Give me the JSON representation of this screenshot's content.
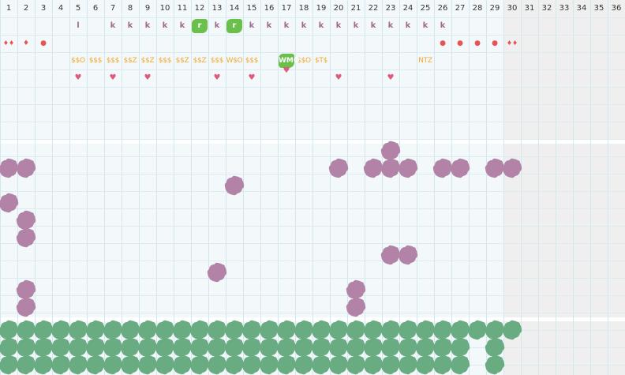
{
  "days": [
    "1",
    "2",
    "3",
    "4",
    "5",
    "6",
    "7",
    "8",
    "9",
    "10",
    "11",
    "12",
    "13",
    "14",
    "15",
    "16",
    "17",
    "18",
    "19",
    "20",
    "21",
    "22",
    "23",
    "24",
    "25",
    "26",
    "27",
    "28",
    "29",
    "30",
    "31",
    "32",
    "33",
    "34",
    "35",
    "36"
  ],
  "last_active_day": 29,
  "colors": {
    "grid_bg": "#f3f8fb",
    "gridline": "#d4e6ee",
    "blank_days_bg": "#efefef",
    "mark_purple": "#b283a7",
    "mark_green": "#6aac82",
    "badge_green": "#6ac04a",
    "k_letter": "#a06a8f",
    "money_text": "#f0a830",
    "heart": "#e05a7a",
    "dot_red": "#e65555"
  },
  "letter_row": [
    {
      "day": 5,
      "text": "l"
    },
    {
      "day": 7,
      "text": "k"
    },
    {
      "day": 8,
      "text": "k"
    },
    {
      "day": 9,
      "text": "k"
    },
    {
      "day": 10,
      "text": "k"
    },
    {
      "day": 11,
      "text": "k"
    },
    {
      "day": 12,
      "text": "r",
      "badge": true
    },
    {
      "day": 13,
      "text": "k"
    },
    {
      "day": 14,
      "text": "r",
      "badge": true
    },
    {
      "day": 15,
      "text": "k"
    },
    {
      "day": 16,
      "text": "k"
    },
    {
      "day": 17,
      "text": "k"
    },
    {
      "day": 18,
      "text": "k"
    },
    {
      "day": 19,
      "text": "k"
    },
    {
      "day": 20,
      "text": "k"
    },
    {
      "day": 21,
      "text": "k"
    },
    {
      "day": 22,
      "text": "k"
    },
    {
      "day": 23,
      "text": "k"
    },
    {
      "day": 24,
      "text": "k"
    },
    {
      "day": 25,
      "text": "k"
    },
    {
      "day": 26,
      "text": "k"
    }
  ],
  "dot_row": [
    {
      "day": 1,
      "text": "♦♦"
    },
    {
      "day": 2,
      "text": "♦"
    },
    {
      "day": 3,
      "text": "●"
    },
    {
      "day": 26,
      "text": "●"
    },
    {
      "day": 27,
      "text": "●"
    },
    {
      "day": 28,
      "text": "●"
    },
    {
      "day": 29,
      "text": "●"
    },
    {
      "day": 30,
      "text": "♦♦"
    }
  ],
  "money_row": [
    {
      "day": 5,
      "text": "$$O"
    },
    {
      "day": 6,
      "text": "$$$"
    },
    {
      "day": 7,
      "text": "$$$"
    },
    {
      "day": 8,
      "text": "$$Z"
    },
    {
      "day": 9,
      "text": "$$Z"
    },
    {
      "day": 10,
      "text": "$$$"
    },
    {
      "day": 11,
      "text": "$$Z"
    },
    {
      "day": 12,
      "text": "$$Z"
    },
    {
      "day": 13,
      "text": "$$$"
    },
    {
      "day": 14,
      "text": "W$O"
    },
    {
      "day": 15,
      "text": "$$$"
    },
    {
      "day": 17,
      "text": "WMO",
      "badge": true
    },
    {
      "day": 18,
      "text": "$$O"
    },
    {
      "day": 19,
      "text": "$T$"
    },
    {
      "day": 25,
      "text": "NTZ"
    }
  ],
  "heart_row": [
    {
      "day": 5,
      "row": 4
    },
    {
      "day": 7,
      "row": 4
    },
    {
      "day": 9,
      "row": 4
    },
    {
      "day": 13,
      "row": 4
    },
    {
      "day": 15,
      "row": 4
    },
    {
      "day": 17,
      "row": 3.6
    },
    {
      "day": 20,
      "row": 4
    },
    {
      "day": 23,
      "row": 4
    }
  ],
  "purple_marks": [
    [
      23,
      8.2
    ],
    [
      1,
      9.2
    ],
    [
      2,
      9.2
    ],
    [
      20,
      9.2
    ],
    [
      22,
      9.2
    ],
    [
      23,
      9.2
    ],
    [
      24,
      9.2
    ],
    [
      26,
      9.2
    ],
    [
      27,
      9.2
    ],
    [
      29,
      9.2
    ],
    [
      30,
      9.2
    ],
    [
      14,
      10.2
    ],
    [
      1,
      11.2
    ],
    [
      2,
      12.2
    ],
    [
      2,
      13.2
    ],
    [
      23,
      14.2
    ],
    [
      24,
      14.2
    ],
    [
      13,
      15.2
    ],
    [
      2,
      16.2
    ],
    [
      21,
      16.2
    ],
    [
      2,
      17.2
    ],
    [
      21,
      17.2
    ]
  ],
  "green_rows": [
    {
      "row": 18.5,
      "days": [
        1,
        2,
        3,
        4,
        5,
        6,
        7,
        8,
        9,
        10,
        11,
        12,
        13,
        14,
        15,
        16,
        17,
        18,
        19,
        20,
        21,
        22,
        23,
        24,
        25,
        26,
        27,
        28,
        29,
        30
      ]
    },
    {
      "row": 19.5,
      "days": [
        1,
        2,
        3,
        4,
        5,
        6,
        7,
        8,
        9,
        10,
        11,
        12,
        13,
        14,
        15,
        16,
        17,
        18,
        19,
        20,
        21,
        22,
        23,
        24,
        25,
        26,
        27,
        29
      ]
    },
    {
      "row": 20.5,
      "days": [
        1,
        2,
        3,
        4,
        5,
        6,
        7,
        8,
        9,
        10,
        11,
        12,
        13,
        14,
        15,
        16,
        17,
        18,
        19,
        20,
        21,
        22,
        23,
        24,
        25,
        26,
        27,
        29
      ]
    }
  ]
}
